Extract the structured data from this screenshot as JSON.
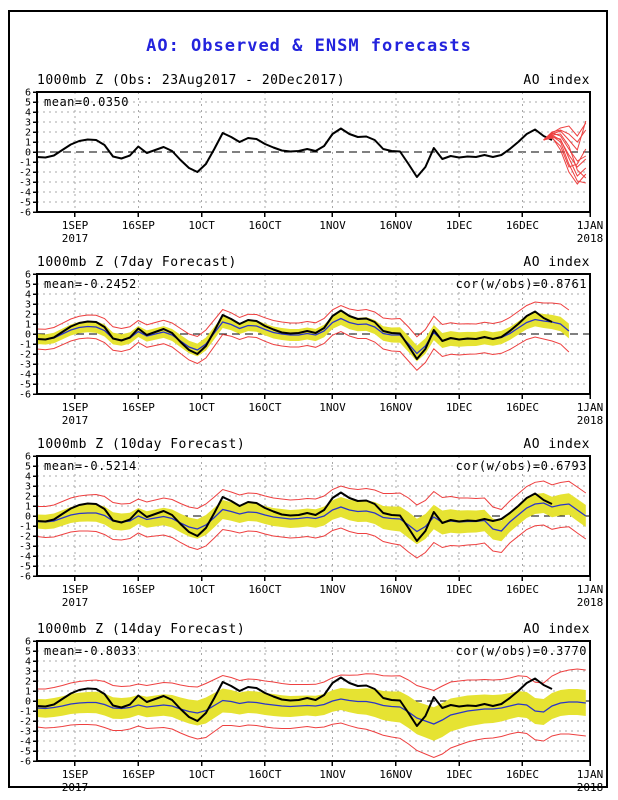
{
  "page": {
    "title": "AO: Observed & ENSM forecasts",
    "title_color": "#2323dd",
    "background": "#ffffff",
    "border_color": "#000000"
  },
  "colors": {
    "observed_line": "#000000",
    "ensemble_mean_line": "#2a35c8",
    "ensemble_member_line": "#ee4040",
    "envelope_line": "#ee4040",
    "spread_band": "#e6e332",
    "gridline": "#a8a8a8",
    "zero_line": "#000000"
  },
  "axis": {
    "y_min": -6,
    "y_max": 6,
    "y_tick_step": 1,
    "x_min_day": 0,
    "x_max_day": 131,
    "x_ticks": [
      {
        "day": 9,
        "label": "1SEP",
        "sub": "2017"
      },
      {
        "day": 24,
        "label": "16SEP"
      },
      {
        "day": 39,
        "label": "1OCT"
      },
      {
        "day": 54,
        "label": "16OCT"
      },
      {
        "day": 70,
        "label": "1NOV"
      },
      {
        "day": 85,
        "label": "16NOV"
      },
      {
        "day": 100,
        "label": "1DEC"
      },
      {
        "day": 115,
        "label": "16DEC"
      },
      {
        "day": 131,
        "label": "1JAN",
        "sub": "2018"
      }
    ]
  },
  "chart_data": [
    {
      "panel": "observed",
      "type": "line",
      "title_left": "1000mb Z (Obs: 23Aug2017 - 20Dec2017)",
      "title_right": "AO index",
      "annotation_mean": "mean=0.0350",
      "ylim": [
        -6,
        6
      ],
      "x_start_day": 0,
      "x_step_days": 2,
      "series": {
        "observed": [
          -0.5,
          -0.55,
          -0.35,
          0.2,
          0.75,
          1.1,
          1.25,
          1.2,
          0.7,
          -0.45,
          -0.65,
          -0.35,
          0.55,
          -0.1,
          0.2,
          0.5,
          0.1,
          -0.8,
          -1.6,
          -2.0,
          -1.2,
          0.3,
          1.9,
          1.5,
          1.0,
          1.4,
          1.3,
          0.8,
          0.45,
          0.15,
          0.05,
          0.1,
          0.3,
          0.1,
          0.6,
          1.8,
          2.35,
          1.8,
          1.5,
          1.55,
          1.2,
          0.3,
          0.1,
          0.05,
          -1.2,
          -2.5,
          -1.5,
          0.4,
          -0.7,
          -0.4,
          -0.55,
          -0.45,
          -0.5,
          -0.3,
          -0.5,
          -0.3,
          0.3,
          1.0,
          1.8,
          2.25,
          1.6,
          1.2
        ],
        "members": {
          "start_day": 120,
          "step_days": 2,
          "lines": [
            [
              1.2,
              1.9,
              1.6,
              0.3,
              -0.9,
              -0.4
            ],
            [
              1.2,
              1.7,
              1.8,
              0.6,
              -1.8,
              -2.6
            ],
            [
              1.2,
              1.5,
              1.3,
              -0.6,
              -2.4,
              -1.6
            ],
            [
              1.2,
              1.8,
              2.1,
              1.2,
              0.2,
              3.1
            ],
            [
              1.2,
              1.6,
              1.0,
              -1.2,
              -2.9,
              -3.1
            ],
            [
              1.2,
              2.0,
              2.2,
              1.8,
              1.0,
              2.2
            ],
            [
              1.2,
              1.4,
              0.6,
              -1.5,
              -1.2,
              0.3
            ],
            [
              1.2,
              1.7,
              1.2,
              -0.3,
              -1.5,
              -0.7
            ],
            [
              1.2,
              1.9,
              2.4,
              2.6,
              1.6,
              2.9
            ],
            [
              1.2,
              1.5,
              0.2,
              -2.0,
              -3.2,
              -2.2
            ]
          ]
        }
      }
    },
    {
      "panel": "forecast-7day",
      "type": "line",
      "title_left": "1000mb Z (7day Forecast)",
      "title_right": "AO index",
      "annotation_mean": "mean=-0.2452",
      "annotation_cor": "cor(w/obs)=0.8761",
      "ylim": [
        -6,
        6
      ],
      "x_start_day": 0,
      "x_step_days": 2,
      "series": {
        "observed": [
          -0.5,
          -0.55,
          -0.35,
          0.2,
          0.75,
          1.1,
          1.25,
          1.2,
          0.7,
          -0.45,
          -0.65,
          -0.35,
          0.55,
          -0.1,
          0.2,
          0.5,
          0.1,
          -0.8,
          -1.6,
          -2.0,
          -1.2,
          0.3,
          1.9,
          1.5,
          1.0,
          1.4,
          1.3,
          0.8,
          0.45,
          0.15,
          0.05,
          0.1,
          0.3,
          0.1,
          0.6,
          1.8,
          2.35,
          1.8,
          1.5,
          1.55,
          1.2,
          0.3,
          0.1,
          0.05,
          -1.2,
          -2.5,
          -1.5,
          0.4,
          -0.7,
          -0.4,
          -0.55,
          -0.45,
          -0.5,
          -0.3,
          -0.5,
          -0.3,
          0.3,
          1.0,
          1.8,
          2.25,
          1.6,
          1.2
        ],
        "ensemble_mean": [
          -0.5,
          -0.55,
          -0.4,
          0.0,
          0.4,
          0.65,
          0.75,
          0.7,
          0.35,
          -0.45,
          -0.6,
          -0.4,
          0.25,
          -0.2,
          0.0,
          0.2,
          -0.1,
          -0.7,
          -1.3,
          -1.6,
          -1.0,
          0.1,
          1.2,
          0.95,
          0.55,
          0.85,
          0.8,
          0.45,
          0.15,
          0.0,
          -0.1,
          -0.1,
          0.05,
          -0.1,
          0.3,
          1.15,
          1.55,
          1.15,
          0.95,
          1.0,
          0.7,
          0.05,
          -0.1,
          -0.1,
          -1.0,
          -1.95,
          -1.2,
          0.15,
          -0.65,
          -0.45,
          -0.55,
          -0.5,
          -0.5,
          -0.35,
          -0.5,
          -0.35,
          0.05,
          0.6,
          1.15,
          1.45,
          1.3,
          1.2,
          1.0,
          0.3
        ],
        "spread_halfwidth": {
          "days": [
            0,
            8,
            16,
            24,
            32,
            40,
            48,
            56,
            64,
            72,
            80,
            88,
            96,
            104,
            112,
            120,
            128
          ],
          "values": [
            0.5,
            0.55,
            0.6,
            0.55,
            0.6,
            0.65,
            0.55,
            0.6,
            0.6,
            0.65,
            0.7,
            0.8,
            0.75,
            0.7,
            0.65,
            0.7,
            0.75
          ]
        },
        "envelope_halfwidth": {
          "days": [
            0,
            8,
            16,
            24,
            32,
            40,
            48,
            56,
            64,
            72,
            80,
            88,
            96,
            104,
            112,
            120,
            128
          ],
          "values": [
            1.0,
            1.1,
            1.2,
            1.1,
            1.2,
            1.4,
            1.1,
            1.2,
            1.2,
            1.3,
            1.5,
            1.7,
            1.6,
            1.5,
            1.6,
            1.8,
            2.2
          ]
        }
      }
    },
    {
      "panel": "forecast-10day",
      "type": "line",
      "title_left": "1000mb Z (10day Forecast)",
      "title_right": "AO index",
      "annotation_mean": "mean=-0.5214",
      "annotation_cor": "cor(w/obs)=0.6793",
      "ylim": [
        -6,
        6
      ],
      "x_start_day": 0,
      "x_step_days": 2,
      "series": {
        "observed": [
          -0.5,
          -0.55,
          -0.35,
          0.2,
          0.75,
          1.1,
          1.25,
          1.2,
          0.7,
          -0.45,
          -0.65,
          -0.35,
          0.55,
          -0.1,
          0.2,
          0.5,
          0.1,
          -0.8,
          -1.6,
          -2.0,
          -1.2,
          0.3,
          1.9,
          1.5,
          1.0,
          1.4,
          1.3,
          0.8,
          0.45,
          0.15,
          0.05,
          0.1,
          0.3,
          0.1,
          0.6,
          1.8,
          2.35,
          1.8,
          1.5,
          1.55,
          1.2,
          0.3,
          0.1,
          0.05,
          -1.2,
          -2.5,
          -1.5,
          0.4,
          -0.7,
          -0.4,
          -0.55,
          -0.45,
          -0.5,
          -0.3,
          -0.5,
          -0.3,
          0.3,
          1.0,
          1.8,
          2.25,
          1.6,
          1.2
        ],
        "ensemble_mean": [
          -0.55,
          -0.6,
          -0.5,
          -0.2,
          0.1,
          0.25,
          0.3,
          0.3,
          0.05,
          -0.5,
          -0.6,
          -0.5,
          0.0,
          -0.35,
          -0.2,
          -0.05,
          -0.25,
          -0.7,
          -1.1,
          -1.3,
          -0.9,
          -0.15,
          0.65,
          0.45,
          0.2,
          0.4,
          0.35,
          0.1,
          -0.1,
          -0.2,
          -0.3,
          -0.25,
          -0.15,
          -0.25,
          0.0,
          0.6,
          0.9,
          0.6,
          0.45,
          0.5,
          0.3,
          -0.15,
          -0.25,
          -0.3,
          -0.9,
          -1.55,
          -1.05,
          -0.1,
          -0.65,
          -0.5,
          -0.6,
          -0.55,
          -0.55,
          -0.45,
          -1.3,
          -1.5,
          -0.6,
          0.1,
          0.8,
          1.2,
          1.3,
          0.9,
          1.1,
          1.2,
          0.6,
          0.0
        ],
        "spread_halfwidth": {
          "days": [
            0,
            8,
            16,
            24,
            32,
            40,
            48,
            56,
            64,
            72,
            80,
            88,
            96,
            104,
            112,
            120,
            128
          ],
          "values": [
            0.7,
            0.8,
            0.9,
            0.8,
            0.9,
            1.0,
            0.9,
            0.9,
            0.9,
            1.0,
            1.1,
            1.3,
            1.2,
            1.1,
            1.0,
            1.0,
            1.1
          ]
        },
        "envelope_halfwidth": {
          "days": [
            0,
            8,
            16,
            24,
            32,
            40,
            48,
            56,
            64,
            72,
            80,
            88,
            96,
            104,
            112,
            120,
            128
          ],
          "values": [
            1.5,
            1.7,
            1.9,
            1.7,
            1.9,
            2.1,
            1.9,
            1.9,
            1.9,
            2.1,
            2.3,
            2.7,
            2.5,
            2.3,
            2.1,
            2.2,
            2.3
          ]
        }
      }
    },
    {
      "panel": "forecast-14day",
      "type": "line",
      "title_left": "1000mb Z (14day Forecast)",
      "title_right": "AO index",
      "annotation_mean": "mean=-0.8033",
      "annotation_cor": "cor(w/obs)=0.3770",
      "ylim": [
        -6,
        6
      ],
      "x_start_day": 0,
      "x_step_days": 2,
      "series": {
        "observed": [
          -0.5,
          -0.55,
          -0.35,
          0.2,
          0.75,
          1.1,
          1.25,
          1.2,
          0.7,
          -0.45,
          -0.65,
          -0.35,
          0.55,
          -0.1,
          0.2,
          0.5,
          0.1,
          -0.8,
          -1.6,
          -2.0,
          -1.2,
          0.3,
          1.9,
          1.5,
          1.0,
          1.4,
          1.3,
          0.8,
          0.45,
          0.15,
          0.05,
          0.1,
          0.3,
          0.1,
          0.6,
          1.8,
          2.35,
          1.8,
          1.5,
          1.55,
          1.2,
          0.3,
          0.1,
          0.05,
          -1.2,
          -2.5,
          -1.5,
          0.4,
          -0.7,
          -0.4,
          -0.55,
          -0.45,
          -0.5,
          -0.3,
          -0.5,
          -0.3,
          0.3,
          1.0,
          1.8,
          2.25,
          1.6,
          1.2
        ],
        "ensemble_mean": [
          -0.7,
          -0.75,
          -0.65,
          -0.5,
          -0.3,
          -0.2,
          -0.15,
          -0.15,
          -0.35,
          -0.7,
          -0.75,
          -0.65,
          -0.4,
          -0.6,
          -0.5,
          -0.4,
          -0.5,
          -0.8,
          -1.05,
          -1.2,
          -0.95,
          -0.45,
          0.05,
          -0.05,
          -0.25,
          -0.1,
          -0.15,
          -0.3,
          -0.4,
          -0.5,
          -0.55,
          -0.5,
          -0.45,
          -0.5,
          -0.35,
          0.0,
          0.2,
          0.05,
          -0.05,
          -0.05,
          -0.2,
          -0.45,
          -0.55,
          -0.6,
          -1.1,
          -1.7,
          -2.0,
          -2.3,
          -1.9,
          -1.4,
          -1.2,
          -1.0,
          -0.9,
          -0.8,
          -0.8,
          -0.7,
          -0.5,
          -0.3,
          -0.4,
          -1.0,
          -1.1,
          -0.5,
          -0.2,
          -0.1,
          -0.1,
          -0.2
        ],
        "spread_halfwidth": {
          "days": [
            0,
            8,
            16,
            24,
            32,
            40,
            48,
            56,
            64,
            72,
            80,
            88,
            96,
            104,
            112,
            120,
            128
          ],
          "values": [
            0.9,
            1.0,
            1.1,
            1.0,
            1.1,
            1.3,
            1.1,
            1.1,
            1.0,
            1.1,
            1.4,
            1.6,
            1.7,
            1.5,
            1.3,
            1.3,
            1.3
          ]
        },
        "envelope_halfwidth": {
          "days": [
            0,
            8,
            16,
            24,
            32,
            40,
            48,
            56,
            64,
            72,
            80,
            88,
            96,
            104,
            112,
            120,
            128
          ],
          "values": [
            1.9,
            2.1,
            2.3,
            2.1,
            2.3,
            2.7,
            2.3,
            2.3,
            2.1,
            2.4,
            2.9,
            3.2,
            3.4,
            3.0,
            2.8,
            2.9,
            3.3
          ]
        }
      }
    }
  ]
}
